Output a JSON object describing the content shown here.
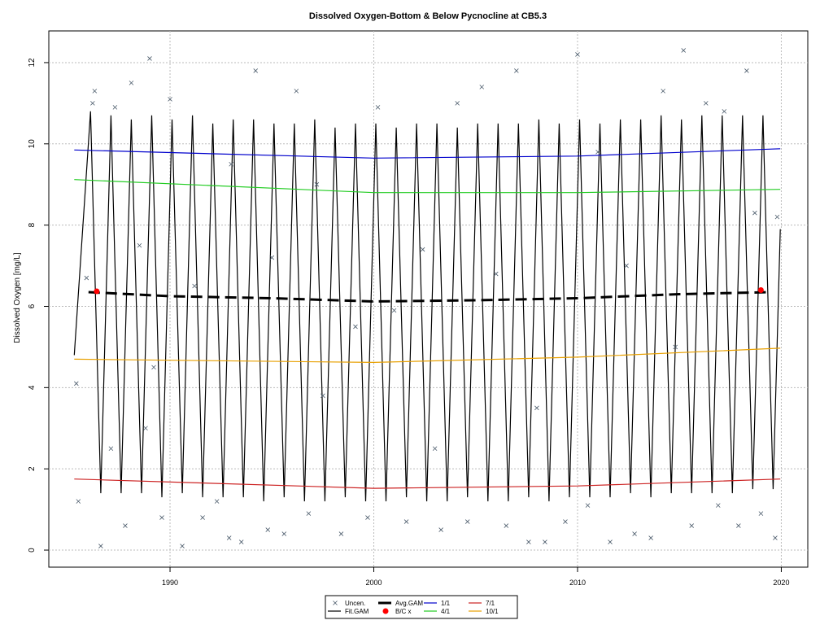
{
  "chart_data": {
    "type": "line",
    "title": "Dissolved Oxygen-Bottom & Below Pycnocline at CB5.3",
    "y_label": "Dissolved Oxygen [mg/L]",
    "xlim": [
      1984.05,
      2021.3
    ],
    "ylim": [
      -0.42,
      12.78
    ],
    "xticks": [
      1990,
      2000,
      2010,
      2020
    ],
    "yticks": [
      0,
      2,
      4,
      6,
      8,
      10,
      12
    ],
    "grid": true,
    "legend": "bottom",
    "series": [
      {
        "name": "Uncen.",
        "type": "scatter",
        "marker": "x",
        "color": "#4a5a6a",
        "x": [
          1985.4,
          1985.5,
          1985.9,
          1986.2,
          1986.3,
          1986.6,
          1987.1,
          1987.3,
          1987.8,
          1988.1,
          1988.5,
          1988.8,
          1989.0,
          1989.2,
          1989.6,
          1990.0,
          1990.6,
          1991.2,
          1991.6,
          1992.3,
          1992.9,
          1993.0,
          1993.5,
          1994.2,
          1994.8,
          1995.0,
          1995.6,
          1996.2,
          1996.8,
          1997.2,
          1997.5,
          1998.4,
          1999.1,
          1999.7,
          2000.2,
          2001.0,
          2001.6,
          2002.4,
          2003.0,
          2003.3,
          2004.1,
          2004.6,
          2005.3,
          2006.0,
          2006.5,
          2007.0,
          2007.6,
          2008.0,
          2008.4,
          2009.4,
          2010.0,
          2010.5,
          2011.0,
          2011.6,
          2012.4,
          2012.8,
          2013.6,
          2014.2,
          2014.8,
          2015.2,
          2015.6,
          2016.3,
          2016.9,
          2017.2,
          2017.9,
          2018.3,
          2018.7,
          2019.0,
          2019.7,
          2019.8
        ],
        "values": [
          4.1,
          1.2,
          6.7,
          11.0,
          11.3,
          0.1,
          2.5,
          10.9,
          0.6,
          11.5,
          7.5,
          3.0,
          12.1,
          4.5,
          0.8,
          11.1,
          0.1,
          6.5,
          0.8,
          1.2,
          0.3,
          9.5,
          0.2,
          11.8,
          0.5,
          7.2,
          0.4,
          11.3,
          0.9,
          9.0,
          3.8,
          0.4,
          5.5,
          0.8,
          10.9,
          5.9,
          0.7,
          7.4,
          2.5,
          0.5,
          11.0,
          0.7,
          11.4,
          6.8,
          0.6,
          11.8,
          0.2,
          3.5,
          0.2,
          0.7,
          12.2,
          1.1,
          9.8,
          0.2,
          7.0,
          0.4,
          0.3,
          11.3,
          5.0,
          12.3,
          0.6,
          11.0,
          1.1,
          10.8,
          0.6,
          11.8,
          8.3,
          0.9,
          0.3,
          8.2
        ]
      },
      {
        "name": "Fit.GAM",
        "type": "line",
        "color": "#000000",
        "x": [
          1985.3,
          1986.1,
          1986.6,
          1987.1,
          1987.6,
          1988.1,
          1988.6,
          1989.1,
          1989.6,
          1990.1,
          1990.6,
          1991.1,
          1991.6,
          1992.1,
          1992.6,
          1993.1,
          1993.6,
          1994.1,
          1994.6,
          1995.1,
          1995.6,
          1996.1,
          1996.6,
          1997.1,
          1997.6,
          1998.1,
          1998.6,
          1999.1,
          1999.6,
          2000.1,
          2000.6,
          2001.1,
          2001.6,
          2002.1,
          2002.6,
          2003.1,
          2003.6,
          2004.1,
          2004.6,
          2005.1,
          2005.6,
          2006.1,
          2006.6,
          2007.1,
          2007.6,
          2008.1,
          2008.6,
          2009.1,
          2009.6,
          2010.1,
          2010.6,
          2011.1,
          2011.6,
          2012.1,
          2012.6,
          2013.1,
          2013.6,
          2014.1,
          2014.6,
          2015.1,
          2015.6,
          2016.1,
          2016.6,
          2017.1,
          2017.6,
          2018.1,
          2018.6,
          2019.1,
          2019.6,
          2019.95
        ],
        "values": [
          4.8,
          10.8,
          1.4,
          10.7,
          1.4,
          10.6,
          1.4,
          10.7,
          1.3,
          10.6,
          1.4,
          10.7,
          1.3,
          10.5,
          1.3,
          10.6,
          1.3,
          10.6,
          1.2,
          10.5,
          1.3,
          10.5,
          1.2,
          10.6,
          1.2,
          10.4,
          1.3,
          10.5,
          1.2,
          10.5,
          1.2,
          10.4,
          1.3,
          10.5,
          1.2,
          10.5,
          1.2,
          10.4,
          1.3,
          10.5,
          1.2,
          10.5,
          1.2,
          10.5,
          1.3,
          10.6,
          1.2,
          10.5,
          1.3,
          10.6,
          1.3,
          10.5,
          1.3,
          10.6,
          1.4,
          10.6,
          1.3,
          10.7,
          1.4,
          10.6,
          1.4,
          10.7,
          1.4,
          10.7,
          1.4,
          10.7,
          1.5,
          10.7,
          1.5,
          7.9
        ]
      },
      {
        "name": "Avg.GAM",
        "type": "line",
        "linestyle": "dashed",
        "color": "#000000",
        "x": [
          1986.0,
          1990.0,
          1995.0,
          2000.0,
          2005.0,
          2010.0,
          2015.0,
          2019.5
        ],
        "values": [
          6.35,
          6.25,
          6.2,
          6.12,
          6.15,
          6.2,
          6.3,
          6.35
        ]
      },
      {
        "name": "B/C x",
        "type": "scatter",
        "marker": "o",
        "color": "#ff0000",
        "x": [
          1986.4,
          2019.0
        ],
        "values": [
          6.37,
          6.4
        ]
      },
      {
        "name": "1/1",
        "type": "line",
        "color": "#0000cc",
        "x": [
          1985.3,
          2000.0,
          2010.0,
          2019.95
        ],
        "values": [
          9.85,
          9.65,
          9.7,
          9.88
        ]
      },
      {
        "name": "4/1",
        "type": "line",
        "color": "#22cc22",
        "x": [
          1985.3,
          2000.0,
          2010.0,
          2019.95
        ],
        "values": [
          9.12,
          8.8,
          8.8,
          8.88
        ]
      },
      {
        "name": "7/1",
        "type": "line",
        "color": "#cc2222",
        "x": [
          1985.3,
          2000.0,
          2010.0,
          2019.95
        ],
        "values": [
          1.75,
          1.52,
          1.58,
          1.75
        ]
      },
      {
        "name": "10/1",
        "type": "line",
        "color": "#e8a000",
        "x": [
          1985.3,
          2000.0,
          2010.0,
          2019.95
        ],
        "values": [
          4.7,
          4.62,
          4.75,
          4.97
        ]
      }
    ]
  }
}
